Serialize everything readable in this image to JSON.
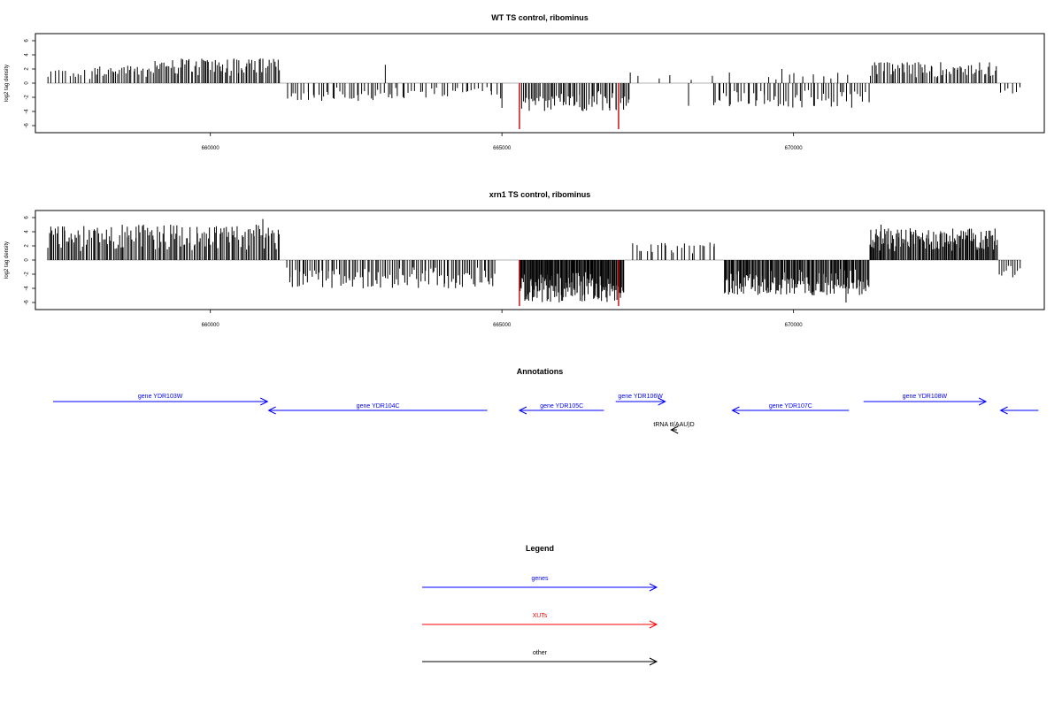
{
  "colors": {
    "background": "#ffffff",
    "gene": "#0000ff",
    "xut": "#ff0000",
    "other": "#000000",
    "bar": "#000000",
    "highlight": "#cc0000",
    "baseline": "#999999"
  },
  "annotations": {
    "title": "Annotations",
    "items": [
      {
        "label": "gene YDR103W",
        "kind": "gene",
        "start": 657200,
        "end": 660980,
        "strand": "+"
      },
      {
        "label": "gene YDR104C",
        "kind": "gene",
        "start": 661000,
        "end": 664750,
        "strand": "-"
      },
      {
        "label": "gene YDR105C",
        "kind": "gene",
        "start": 665300,
        "end": 666750,
        "strand": "-"
      },
      {
        "label": "gene YDR106W",
        "kind": "gene",
        "start": 666950,
        "end": 667800,
        "strand": "+"
      },
      {
        "label": "tRNA tI(AAU)D",
        "kind": "other",
        "start": 667900,
        "end": 668000,
        "strand": "-"
      },
      {
        "label": "gene YDR107C",
        "kind": "gene",
        "start": 668950,
        "end": 670950,
        "strand": "-"
      },
      {
        "label": "gene YDR108W",
        "kind": "gene",
        "start": 671200,
        "end": 673300,
        "strand": "+"
      },
      {
        "label": "",
        "kind": "gene",
        "start": 673550,
        "end": 674200,
        "strand": "-"
      }
    ]
  },
  "legend": {
    "title": "Legend",
    "items": [
      {
        "label": "genes",
        "kind": "gene"
      },
      {
        "label": "XUTs",
        "kind": "xut"
      },
      {
        "label": "other",
        "kind": "other"
      }
    ]
  },
  "chart_data": [
    {
      "type": "bar",
      "title": "WT TS control, ribominus",
      "ylabel": "log2 tag density",
      "xlabel": "",
      "xlim": [
        657000,
        674300
      ],
      "ylim": [
        -7,
        7
      ],
      "yticks": [
        6,
        4,
        2,
        0,
        -2,
        -4,
        -6
      ],
      "xticks": [
        660000,
        665000,
        670000
      ],
      "xtick_labels": [
        "660000",
        "665000",
        "670000"
      ],
      "grid": false,
      "series": [
        {
          "kind": "segments",
          "values": [
            {
              "x0": 657200,
              "x1": 658000,
              "sign": 1,
              "max": 2.0,
              "n": 14
            },
            {
              "x0": 658000,
              "x1": 659000,
              "sign": 1,
              "max": 2.5,
              "n": 30
            },
            {
              "x0": 659000,
              "x1": 661200,
              "sign": 1,
              "max": 3.5,
              "n": 80
            },
            {
              "x0": 661300,
              "x1": 663200,
              "sign": -1,
              "max": 2.5,
              "n": 40
            },
            {
              "x0": 663200,
              "x1": 665000,
              "sign": -1,
              "max": 2.2,
              "n": 30
            },
            {
              "x0": 665300,
              "x1": 667200,
              "sign": -1,
              "max": 4.0,
              "n": 70
            },
            {
              "x0": 667200,
              "x1": 668800,
              "sign": 1,
              "max": 1.2,
              "n": 5
            },
            {
              "x0": 668600,
              "x1": 671300,
              "sign": -1,
              "max": 3.5,
              "n": 60
            },
            {
              "x0": 669500,
              "x1": 671000,
              "sign": 1,
              "max": 1.5,
              "n": 10
            },
            {
              "x0": 671300,
              "x1": 673500,
              "sign": 1,
              "max": 3.0,
              "n": 70
            },
            {
              "x0": 673500,
              "x1": 673900,
              "sign": -1,
              "max": 1.5,
              "n": 6
            }
          ]
        },
        {
          "kind": "spikes",
          "values": [
            {
              "x": 663000,
              "y": 2.6
            },
            {
              "x": 665000,
              "y": -3.5
            },
            {
              "x": 665300,
              "y": -6.5,
              "highlight": true
            },
            {
              "x": 667000,
              "y": -6.5,
              "highlight": true
            },
            {
              "x": 667200,
              "y": 1.5
            },
            {
              "x": 668200,
              "y": -3.2
            },
            {
              "x": 668900,
              "y": 1.5
            },
            {
              "x": 669800,
              "y": 2.0
            }
          ]
        }
      ]
    },
    {
      "type": "bar",
      "title": "xrn1 TS control, ribominus",
      "ylabel": "log2 tag density",
      "xlabel": "",
      "xlim": [
        657000,
        674300
      ],
      "ylim": [
        -7,
        7
      ],
      "yticks": [
        6,
        4,
        2,
        0,
        -2,
        -4,
        -6
      ],
      "xticks": [
        660000,
        665000,
        670000
      ],
      "xtick_labels": [
        "660000",
        "665000",
        "670000"
      ],
      "grid": false,
      "series": [
        {
          "kind": "segments",
          "values": [
            {
              "x0": 657200,
              "x1": 661200,
              "sign": 1,
              "max": 5.0,
              "n": 160
            },
            {
              "x0": 661300,
              "x1": 664900,
              "sign": -1,
              "max": 4.0,
              "n": 110
            },
            {
              "x0": 665300,
              "x1": 667100,
              "sign": -1,
              "max": 6.0,
              "n": 140
            },
            {
              "x0": 667200,
              "x1": 668700,
              "sign": 1,
              "max": 2.5,
              "n": 25
            },
            {
              "x0": 668800,
              "x1": 671300,
              "sign": -1,
              "max": 5.0,
              "n": 150
            },
            {
              "x0": 671300,
              "x1": 673500,
              "sign": 1,
              "max": 4.5,
              "n": 130
            },
            {
              "x0": 673500,
              "x1": 673900,
              "sign": -1,
              "max": 2.5,
              "n": 10
            }
          ]
        },
        {
          "kind": "spikes",
          "values": [
            {
              "x": 660900,
              "y": 5.8
            },
            {
              "x": 665300,
              "y": -6.5,
              "highlight": true
            },
            {
              "x": 667000,
              "y": -6.5,
              "highlight": true
            },
            {
              "x": 670900,
              "y": -6.0
            },
            {
              "x": 671500,
              "y": 5.0
            }
          ]
        }
      ]
    }
  ]
}
